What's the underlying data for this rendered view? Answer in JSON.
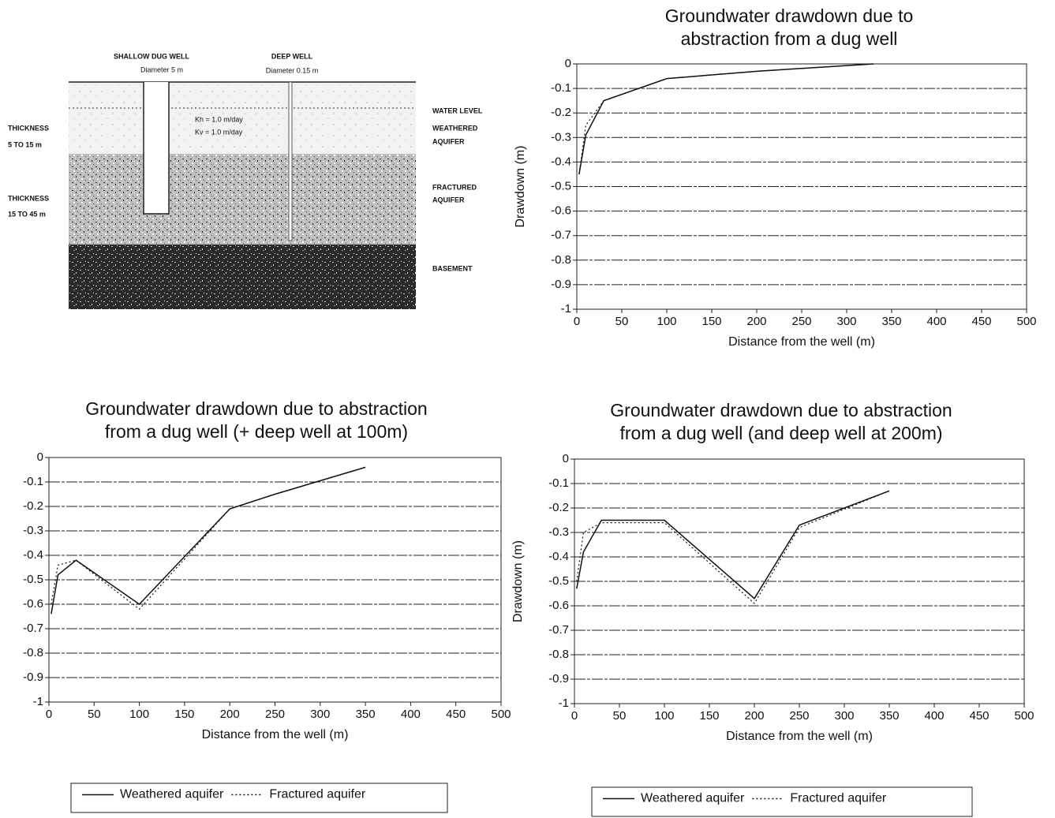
{
  "diagram": {
    "wells": [
      {
        "label": "SHALLOW DUG WELL",
        "diameter": "Diameter 5 m"
      },
      {
        "label": "DEEP WELL",
        "diameter": "Diameter 0.15 m"
      }
    ],
    "water_level": "WATER LEVEL",
    "layers": [
      {
        "name": [
          "WEATHERED",
          "AQUIFER"
        ],
        "thickness": [
          "THICKNESS",
          "5 TO 15 m"
        ],
        "params": [
          "Kh = 1.0 m/day",
          "Kv = 1.0 m/day"
        ]
      },
      {
        "name": [
          "FRACTURED",
          "AQUIFER"
        ],
        "thickness": [
          "THICKNESS",
          "15 TO 45 m"
        ]
      },
      {
        "name": [
          "BASEMENT"
        ]
      }
    ]
  },
  "chart_data": [
    {
      "type": "line",
      "title": [
        "Groundwater drawdown due to",
        "abstraction from a dug well"
      ],
      "x_label": "Distance from the well (m)",
      "y_label": "Drawdown (m)",
      "x": [
        2.5,
        10,
        30,
        100,
        200,
        330
      ],
      "series": [
        {
          "color": "#111111",
          "linestyle": "solid",
          "values": [
            -0.45,
            -0.29,
            -0.15,
            -0.06,
            -0.03,
            0
          ]
        },
        {
          "color": "#111111",
          "linestyle": "dotted",
          "values": [
            -0.45,
            -0.25,
            -0.15,
            -0.06,
            -0.03,
            0
          ]
        }
      ],
      "xlim": [
        0,
        500
      ],
      "xticks": [
        0,
        50,
        100,
        150,
        200,
        250,
        300,
        350,
        400,
        450,
        500
      ],
      "ylim": [
        -1,
        0
      ],
      "yticks": [
        0,
        -0.1,
        -0.2,
        -0.3,
        -0.4,
        -0.5,
        -0.6,
        -0.7,
        -0.8,
        -0.9,
        -1
      ],
      "grid": true
    },
    {
      "type": "line",
      "title": [
        "Groundwater drawdown due to abstraction",
        "from a dug well (+ deep well at 100m)"
      ],
      "x_label": "Distance from the well (m)",
      "x": [
        2.5,
        10,
        30,
        100,
        200,
        250,
        350
      ],
      "series": [
        {
          "name": "Weathered aquifer",
          "color": "#111111",
          "linestyle": "solid",
          "values": [
            -0.64,
            -0.48,
            -0.42,
            -0.6,
            -0.21,
            -0.15,
            -0.04
          ]
        },
        {
          "name": "Fractured aquifer",
          "color": "#111111",
          "linestyle": "dotted",
          "values": [
            -0.6,
            -0.44,
            -0.42,
            -0.62,
            -0.21,
            -0.15,
            -0.04
          ]
        }
      ],
      "xlim": [
        0,
        500
      ],
      "xticks": [
        0,
        50,
        100,
        150,
        200,
        250,
        300,
        350,
        400,
        450,
        500
      ],
      "ylim": [
        -1,
        0
      ],
      "yticks": [
        0,
        -0.1,
        -0.2,
        -0.3,
        -0.4,
        -0.5,
        -0.6,
        -0.7,
        -0.8,
        -0.9,
        -1
      ],
      "grid": true,
      "legend": "below"
    },
    {
      "type": "line",
      "title": [
        "Groundwater drawdown due to abstraction",
        "from a dug well (and deep well at 200m)"
      ],
      "x_label": "Distance from the well (m)",
      "y_label": "Drawdown (m)",
      "x": [
        2.5,
        10,
        30,
        100,
        200,
        250,
        350
      ],
      "series": [
        {
          "name": "Weathered aquifer",
          "color": "#111111",
          "linestyle": "solid",
          "values": [
            -0.53,
            -0.38,
            -0.25,
            -0.25,
            -0.57,
            -0.27,
            -0.13
          ]
        },
        {
          "name": "Fractured aquifer",
          "color": "#111111",
          "linestyle": "dotted",
          "values": [
            -0.5,
            -0.3,
            -0.26,
            -0.26,
            -0.59,
            -0.28,
            -0.13
          ]
        }
      ],
      "xlim": [
        0,
        500
      ],
      "xticks": [
        0,
        50,
        100,
        150,
        200,
        250,
        300,
        350,
        400,
        450,
        500
      ],
      "ylim": [
        -1,
        0
      ],
      "yticks": [
        0,
        -0.1,
        -0.2,
        -0.3,
        -0.4,
        -0.5,
        -0.6,
        -0.7,
        -0.8,
        -0.9,
        -1
      ],
      "grid": true,
      "legend": "below"
    }
  ]
}
